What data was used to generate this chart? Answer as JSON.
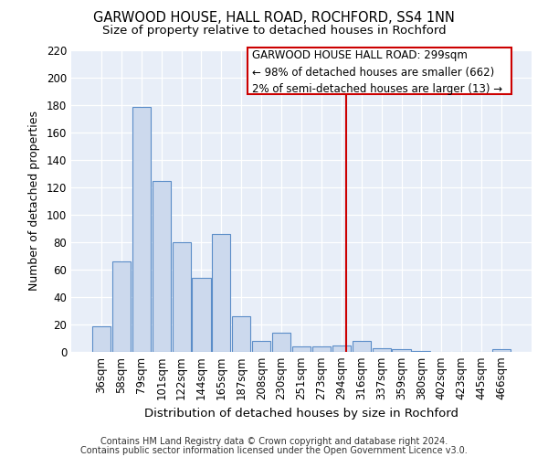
{
  "title": "GARWOOD HOUSE, HALL ROAD, ROCHFORD, SS4 1NN",
  "subtitle": "Size of property relative to detached houses in Rochford",
  "xlabel": "Distribution of detached houses by size in Rochford",
  "ylabel": "Number of detached properties",
  "bar_labels": [
    "36sqm",
    "58sqm",
    "79sqm",
    "101sqm",
    "122sqm",
    "144sqm",
    "165sqm",
    "187sqm",
    "208sqm",
    "230sqm",
    "251sqm",
    "273sqm",
    "294sqm",
    "316sqm",
    "337sqm",
    "359sqm",
    "380sqm",
    "402sqm",
    "423sqm",
    "445sqm",
    "466sqm"
  ],
  "bar_values": [
    19,
    66,
    179,
    125,
    80,
    54,
    86,
    26,
    8,
    14,
    4,
    4,
    5,
    8,
    3,
    2,
    1,
    0,
    0,
    0,
    2
  ],
  "bar_color": "#ccd9ed",
  "bar_edgecolor": "#5b8dc8",
  "background_color": "#e8eef8",
  "grid_color": "#ffffff",
  "property_label": "GARWOOD HOUSE HALL ROAD: 299sqm",
  "annotation_line1": "← 98% of detached houses are smaller (662)",
  "annotation_line2": "2% of semi-detached houses are larger (13) →",
  "vline_color": "#cc0000",
  "vline_x_index": 12.22,
  "footer_line1": "Contains HM Land Registry data © Crown copyright and database right 2024.",
  "footer_line2": "Contains public sector information licensed under the Open Government Licence v3.0.",
  "ylim": [
    0,
    220
  ],
  "yticks": [
    0,
    20,
    40,
    60,
    80,
    100,
    120,
    140,
    160,
    180,
    200,
    220
  ],
  "title_fontsize": 10.5,
  "subtitle_fontsize": 9.5,
  "xlabel_fontsize": 9.5,
  "ylabel_fontsize": 9,
  "tick_fontsize": 8.5,
  "ann_fontsize": 8.5,
  "footer_fontsize": 7
}
